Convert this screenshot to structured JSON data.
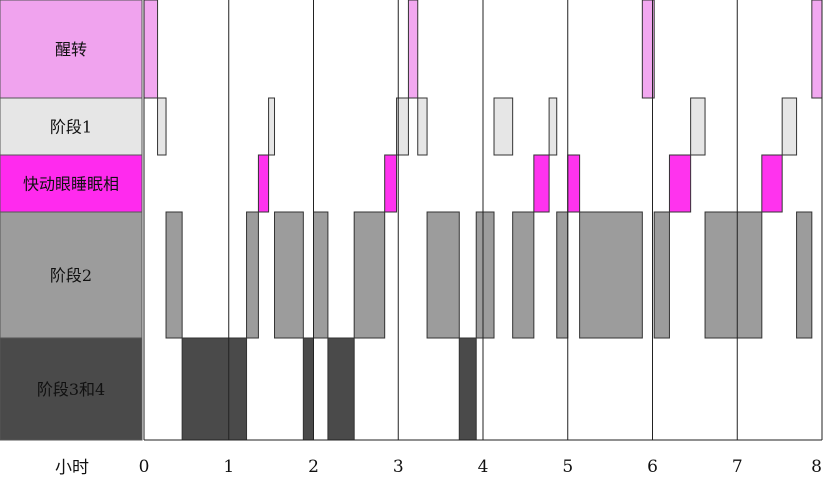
{
  "chart_data": {
    "type": "hypnogram",
    "xlabel": "小时",
    "x_ticks": [
      "0",
      "1",
      "2",
      "3",
      "4",
      "5",
      "6",
      "7",
      "8"
    ],
    "xlim": [
      0,
      8
    ],
    "grid": "vertical lines at every hour",
    "stages": [
      {
        "key": "wake",
        "label": "醒转",
        "color": "#f2a8f0",
        "label_bg": "#f0a3ee"
      },
      {
        "key": "s1",
        "label": "阶段1",
        "color": "#e6e6e6",
        "label_bg": "#e6e6e6"
      },
      {
        "key": "rem",
        "label": "快动眼睡眠相",
        "color": "#ff33ee",
        "label_bg": "#ff2aee"
      },
      {
        "key": "s2",
        "label": "阶段2",
        "color": "#9c9c9c",
        "label_bg": "#9c9c9c"
      },
      {
        "key": "s34",
        "label": "阶段3和4",
        "color": "#4a4a4a",
        "label_bg": "#4a4a4a"
      }
    ],
    "segments": [
      {
        "stage": "wake",
        "start": 0.0,
        "end": 0.16
      },
      {
        "stage": "s1",
        "start": 0.16,
        "end": 0.26
      },
      {
        "stage": "s2",
        "start": 0.26,
        "end": 0.45
      },
      {
        "stage": "s34",
        "start": 0.45,
        "end": 1.21
      },
      {
        "stage": "s2",
        "start": 1.21,
        "end": 1.35
      },
      {
        "stage": "rem",
        "start": 1.35,
        "end": 1.47
      },
      {
        "stage": "s1",
        "start": 1.47,
        "end": 1.54
      },
      {
        "stage": "s2",
        "start": 1.54,
        "end": 1.88
      },
      {
        "stage": "s34",
        "start": 1.88,
        "end": 2.0
      },
      {
        "stage": "s2",
        "start": 2.0,
        "end": 2.17
      },
      {
        "stage": "s34",
        "start": 2.17,
        "end": 2.48
      },
      {
        "stage": "s2",
        "start": 2.48,
        "end": 2.84
      },
      {
        "stage": "rem",
        "start": 2.84,
        "end": 2.98
      },
      {
        "stage": "s1",
        "start": 2.98,
        "end": 3.12
      },
      {
        "stage": "wake",
        "start": 3.12,
        "end": 3.23
      },
      {
        "stage": "s1",
        "start": 3.23,
        "end": 3.34
      },
      {
        "stage": "s2",
        "start": 3.34,
        "end": 3.72
      },
      {
        "stage": "s34",
        "start": 3.72,
        "end": 3.92
      },
      {
        "stage": "s2",
        "start": 3.92,
        "end": 4.13
      },
      {
        "stage": "s1",
        "start": 4.13,
        "end": 4.35
      },
      {
        "stage": "s2",
        "start": 4.35,
        "end": 4.6
      },
      {
        "stage": "rem",
        "start": 4.6,
        "end": 4.78
      },
      {
        "stage": "s1",
        "start": 4.78,
        "end": 4.87
      },
      {
        "stage": "s2",
        "start": 4.87,
        "end": 5.0
      },
      {
        "stage": "rem",
        "start": 5.0,
        "end": 5.14
      },
      {
        "stage": "s2",
        "start": 5.14,
        "end": 5.88
      },
      {
        "stage": "wake",
        "start": 5.88,
        "end": 6.02
      },
      {
        "stage": "s2",
        "start": 6.02,
        "end": 6.2
      },
      {
        "stage": "rem",
        "start": 6.2,
        "end": 6.45
      },
      {
        "stage": "s1",
        "start": 6.45,
        "end": 6.62
      },
      {
        "stage": "s2",
        "start": 6.62,
        "end": 7.29
      },
      {
        "stage": "rem",
        "start": 7.29,
        "end": 7.53
      },
      {
        "stage": "s1",
        "start": 7.53,
        "end": 7.7
      },
      {
        "stage": "s2",
        "start": 7.7,
        "end": 7.88
      },
      {
        "stage": "wake",
        "start": 7.88,
        "end": 8.0
      }
    ]
  }
}
